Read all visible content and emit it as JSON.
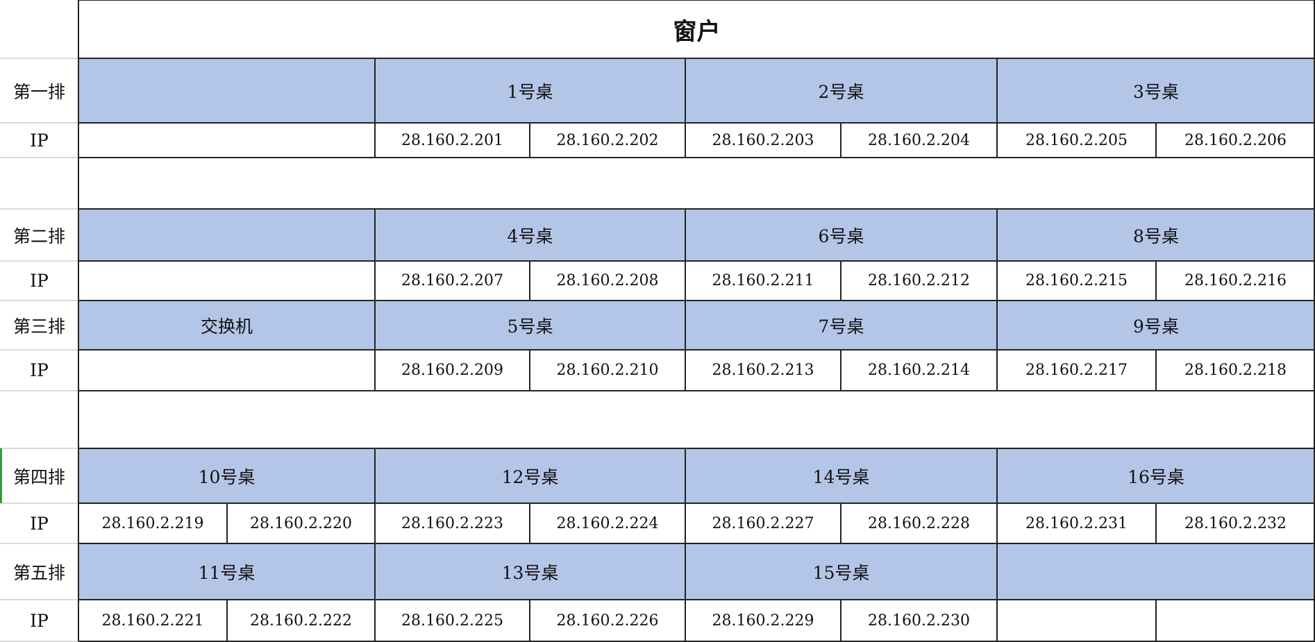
{
  "title": "窗户",
  "rows": [
    {
      "label": "第一排",
      "ip_label": "IP",
      "desks": [
        "",
        "1号桌",
        "2号桌",
        "3号桌"
      ],
      "ips": [
        "",
        "",
        "28.160.2.201",
        "28.160.2.202",
        "28.160.2.203",
        "28.160.2.204",
        "28.160.2.205",
        "28.160.2.206"
      ]
    },
    {
      "label": "第二排",
      "ip_label": "IP",
      "desks": [
        "",
        "4号桌",
        "6号桌",
        "8号桌"
      ],
      "ips": [
        "",
        "",
        "28.160.2.207",
        "28.160.2.208",
        "28.160.2.211",
        "28.160.2.212",
        "28.160.2.215",
        "28.160.2.216"
      ]
    },
    {
      "label": "第三排",
      "ip_label": "IP",
      "desks": [
        "交换机",
        "5号桌",
        "7号桌",
        "9号桌"
      ],
      "ips": [
        "",
        "",
        "28.160.2.209",
        "28.160.2.210",
        "28.160.2.213",
        "28.160.2.214",
        "28.160.2.217",
        "28.160.2.218"
      ]
    },
    {
      "label": "第四排",
      "ip_label": "IP",
      "desks": [
        "10号桌",
        "12号桌",
        "14号桌",
        "16号桌"
      ],
      "ips": [
        "28.160.2.219",
        "28.160.2.220",
        "28.160.2.223",
        "28.160.2.224",
        "28.160.2.227",
        "28.160.2.228",
        "28.160.2.231",
        "28.160.2.232"
      ]
    },
    {
      "label": "第五排",
      "ip_label": "IP",
      "desks": [
        "11号桌",
        "13号桌",
        "15号桌",
        ""
      ],
      "ips": [
        "28.160.2.221",
        "28.160.2.222",
        "28.160.2.225",
        "28.160.2.226",
        "28.160.2.229",
        "28.160.2.230",
        "",
        ""
      ]
    }
  ],
  "colors": {
    "desk_fill": "#b4c6e7",
    "border": "#222222",
    "gridline": "#dadada",
    "selected_row_marker": "#2e9c3a"
  }
}
